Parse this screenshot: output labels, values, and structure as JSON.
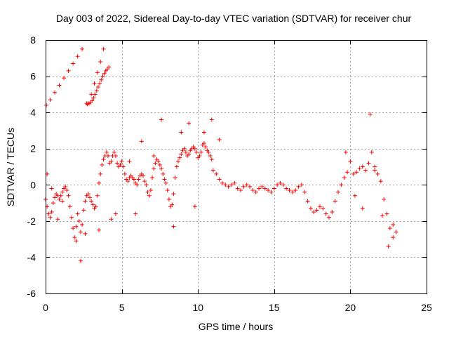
{
  "chart_data": {
    "type": "scatter",
    "title": "Day 003 of 2022, Sidereal Day-to-day VTEC variation (SDTVAR) for receiver chur",
    "xlabel": "GPS time / hours",
    "ylabel": "SDTVAR / TECUs",
    "xlim": [
      0,
      25
    ],
    "ylim": [
      -6,
      8
    ],
    "xticks": [
      0,
      5,
      10,
      15,
      20,
      25
    ],
    "yticks": [
      -6,
      -4,
      -2,
      0,
      2,
      4,
      6,
      8
    ],
    "grid": true,
    "marker": "+",
    "color": "#ff0000",
    "series": [
      {
        "name": "SDTVAR",
        "x": [
          0.0,
          0.1,
          0.2,
          0.3,
          0.4,
          0.5,
          0.6,
          0.7,
          0.8,
          0.9,
          1.0,
          1.1,
          1.2,
          1.3,
          1.4,
          1.5,
          1.6,
          1.7,
          1.8,
          1.9,
          2.0,
          2.1,
          2.2,
          2.3,
          2.4,
          2.5,
          2.6,
          2.7,
          2.8,
          2.9,
          3.0,
          3.1,
          3.2,
          3.3,
          3.4,
          3.5,
          3.6,
          3.7,
          3.8,
          3.9,
          4.0,
          4.1,
          4.2,
          4.3,
          4.4,
          4.5,
          4.6,
          4.7,
          4.8,
          4.9,
          5.0,
          5.1,
          5.2,
          5.3,
          5.4,
          5.5,
          5.6,
          5.7,
          5.8,
          5.9,
          6.0,
          6.1,
          6.2,
          6.3,
          6.4,
          6.5,
          6.6,
          6.7,
          6.8,
          6.9,
          7.0,
          7.1,
          7.2,
          7.3,
          7.4,
          7.5,
          7.6,
          7.7,
          7.8,
          7.9,
          8.0,
          8.1,
          8.2,
          8.3,
          8.4,
          8.5,
          8.6,
          8.7,
          8.8,
          8.9,
          9.0,
          9.1,
          9.2,
          9.3,
          9.4,
          9.5,
          9.6,
          9.7,
          9.8,
          9.9,
          10.0,
          10.1,
          10.2,
          10.3,
          10.4,
          10.5,
          10.6,
          10.7,
          10.8,
          10.9,
          11.0,
          11.2,
          11.4,
          11.6,
          11.8,
          12.0,
          12.2,
          12.4,
          12.6,
          12.8,
          13.0,
          13.2,
          13.4,
          13.6,
          13.8,
          14.0,
          14.2,
          14.4,
          14.6,
          14.8,
          15.0,
          15.2,
          15.4,
          15.6,
          15.8,
          16.0,
          16.2,
          16.4,
          16.6,
          16.8,
          17.0,
          17.2,
          17.4,
          17.6,
          17.8,
          18.0,
          18.2,
          18.4,
          18.6,
          18.8,
          19.0,
          19.2,
          19.4,
          19.6,
          19.8,
          20.0,
          20.2,
          20.4,
          20.6,
          20.8,
          21.0,
          21.2,
          21.4,
          21.6,
          21.8,
          22.0,
          22.2,
          22.4,
          22.6,
          22.8,
          23.0,
          0.05,
          0.3,
          0.6,
          0.9,
          1.2,
          1.5,
          1.8,
          2.1,
          2.4,
          2.7,
          3.0,
          3.2,
          3.4,
          3.6,
          3.8,
          2.75,
          2.85,
          2.95,
          3.05,
          3.15,
          3.25,
          3.35,
          3.45,
          3.55,
          3.65,
          3.75,
          3.85,
          3.95,
          4.05,
          4.15,
          0.1,
          0.4,
          0.8,
          1.1,
          2.0,
          2.3,
          2.6,
          3.5,
          4.3,
          4.6,
          5.5,
          5.9,
          6.3,
          7.1,
          7.6,
          8.4,
          8.9,
          9.4,
          9.8,
          10.4,
          10.9,
          11.4,
          19.7,
          20.3,
          20.8,
          21.3,
          21.6,
          22.1,
          22.5,
          22.8
        ],
        "y": [
          -0.8,
          -1.2,
          -1.6,
          -1.8,
          -1.5,
          -1.0,
          -0.7,
          -0.5,
          -0.6,
          -0.8,
          -0.6,
          -0.4,
          -0.2,
          -0.1,
          -0.3,
          -0.6,
          -1.2,
          -1.8,
          -2.4,
          -2.9,
          -2.3,
          -1.6,
          -2.0,
          -2.6,
          -2.2,
          -1.4,
          -0.9,
          -0.6,
          -0.5,
          -0.7,
          -0.9,
          -1.1,
          -1.3,
          -1.2,
          -0.6,
          0.1,
          0.6,
          1.1,
          1.4,
          1.6,
          1.8,
          1.6,
          1.2,
          1.3,
          1.6,
          1.8,
          1.6,
          1.2,
          1.0,
          1.1,
          1.3,
          1.0,
          0.6,
          0.3,
          0.2,
          0.4,
          0.5,
          0.4,
          0.3,
          0.1,
          0.0,
          0.3,
          0.5,
          0.6,
          0.5,
          0.2,
          0.0,
          -0.4,
          -0.6,
          -0.3,
          0.4,
          0.9,
          1.2,
          1.4,
          1.3,
          1.1,
          0.9,
          0.6,
          0.3,
          0.1,
          -0.3,
          -0.8,
          -1.2,
          -1.1,
          -0.5,
          0.4,
          1.0,
          1.3,
          1.5,
          1.7,
          1.9,
          2.0,
          1.8,
          1.6,
          1.7,
          1.9,
          2.0,
          2.1,
          2.0,
          1.8,
          1.5,
          1.6,
          1.8,
          2.2,
          2.3,
          2.1,
          1.9,
          1.8,
          1.6,
          1.4,
          0.8,
          0.6,
          0.3,
          0.1,
          0.0,
          -0.1,
          0.0,
          0.1,
          -0.2,
          -0.3,
          -0.1,
          0.0,
          -0.1,
          -0.3,
          -0.4,
          -0.2,
          -0.1,
          -0.2,
          -0.3,
          -0.4,
          -0.2,
          0.0,
          0.1,
          0.0,
          -0.2,
          -0.3,
          -0.4,
          -0.3,
          -0.1,
          0.0,
          -0.4,
          -0.9,
          -1.3,
          -1.5,
          -1.4,
          -1.2,
          -1.3,
          -1.6,
          -1.8,
          -1.5,
          -0.9,
          -0.4,
          0.0,
          0.4,
          0.7,
          1.3,
          0.6,
          0.7,
          0.9,
          1.0,
          0.8,
          1.2,
          1.8,
          1.0,
          0.6,
          0.2,
          -0.8,
          -1.6,
          -2.4,
          -2.2,
          -2.6,
          4.4,
          4.7,
          5.1,
          5.5,
          5.9,
          6.3,
          6.7,
          7.1,
          7.5,
          4.5,
          5.0,
          5.6,
          6.2,
          6.8,
          7.5,
          4.45,
          4.5,
          4.55,
          4.65,
          4.8,
          5.0,
          5.2,
          5.4,
          5.6,
          5.8,
          6.0,
          6.15,
          6.3,
          6.4,
          6.5,
          0.6,
          -0.2,
          -1.9,
          -0.9,
          -3.1,
          -4.2,
          -2.7,
          -2.5,
          -1.9,
          -1.6,
          1.3,
          -1.6,
          2.4,
          1.6,
          3.6,
          -2.3,
          2.9,
          3.4,
          -1.2,
          2.9,
          3.6,
          2.5,
          1.8,
          -0.6,
          -1.3,
          3.9,
          0.8,
          -1.7,
          -3.4,
          -2.9
        ]
      }
    ]
  }
}
